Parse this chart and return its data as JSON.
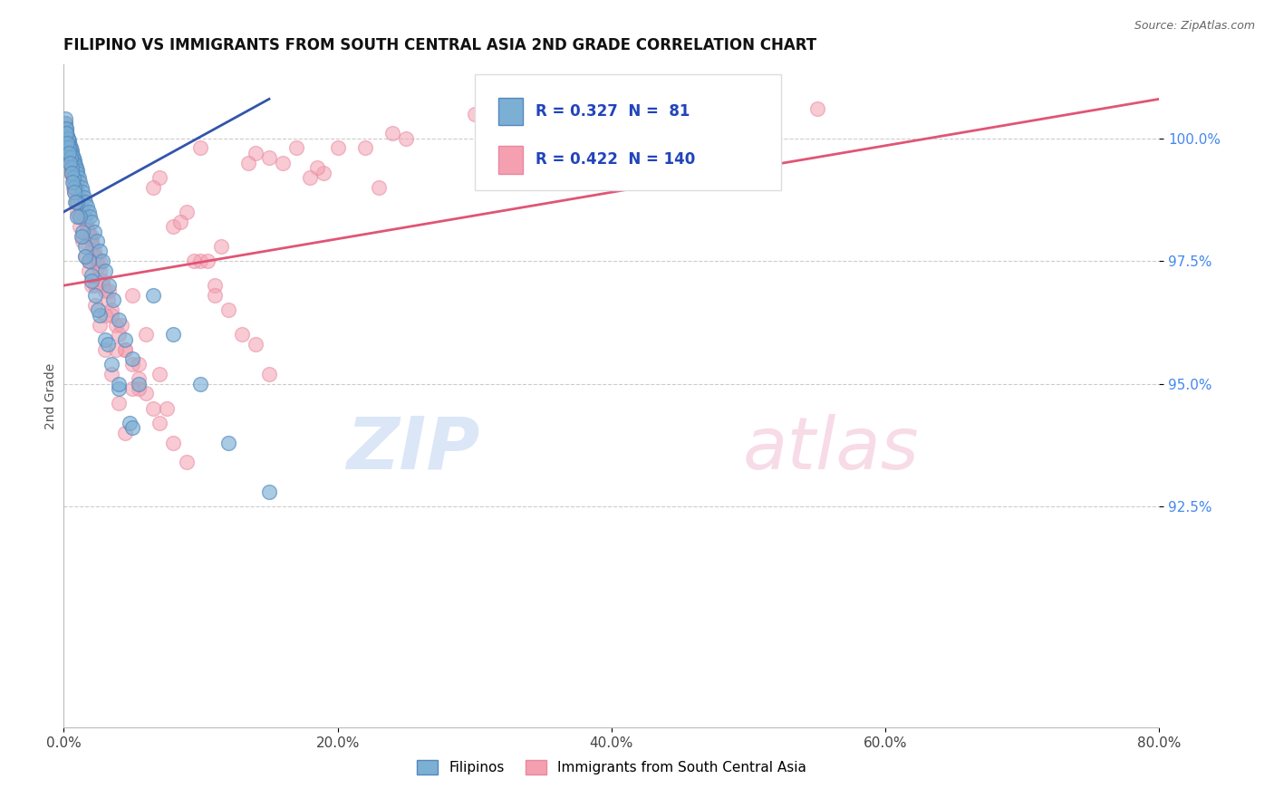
{
  "title": "FILIPINO VS IMMIGRANTS FROM SOUTH CENTRAL ASIA 2ND GRADE CORRELATION CHART",
  "source": "Source: ZipAtlas.com",
  "xlabel_values": [
    0.0,
    20.0,
    40.0,
    60.0,
    80.0
  ],
  "ylabel": "2nd Grade",
  "ylabel_values": [
    92.5,
    95.0,
    97.5,
    100.0
  ],
  "xlim": [
    0.0,
    80.0
  ],
  "ylim": [
    88.0,
    101.5
  ],
  "blue_R": 0.327,
  "blue_N": 81,
  "pink_R": 0.422,
  "pink_N": 140,
  "blue_color": "#7BAFD4",
  "pink_color": "#F4A0B0",
  "blue_line_color": "#3355AA",
  "pink_line_color": "#E05575",
  "legend_filipinos": "Filipinos",
  "legend_immigrants": "Immigrants from South Central Asia",
  "blue_scatter_x": [
    0.1,
    0.15,
    0.2,
    0.25,
    0.3,
    0.35,
    0.4,
    0.45,
    0.5,
    0.55,
    0.6,
    0.65,
    0.7,
    0.75,
    0.8,
    0.85,
    0.9,
    0.95,
    1.0,
    1.1,
    1.2,
    1.3,
    1.4,
    1.5,
    1.6,
    1.7,
    1.8,
    1.9,
    2.0,
    2.2,
    2.4,
    2.6,
    2.8,
    3.0,
    3.3,
    3.6,
    4.0,
    4.5,
    5.0,
    5.5,
    0.1,
    0.2,
    0.3,
    0.4,
    0.5,
    0.6,
    0.7,
    0.8,
    1.0,
    1.2,
    1.4,
    1.6,
    1.8,
    2.0,
    2.3,
    2.6,
    3.0,
    3.5,
    4.0,
    4.8,
    0.15,
    0.25,
    0.35,
    0.45,
    0.55,
    0.65,
    0.75,
    0.85,
    1.0,
    1.3,
    1.6,
    2.0,
    2.5,
    3.2,
    4.0,
    5.0,
    6.5,
    8.0,
    10.0,
    12.0,
    15.0
  ],
  "blue_scatter_y": [
    100.3,
    100.2,
    100.1,
    100.05,
    100.0,
    99.95,
    99.9,
    99.85,
    99.8,
    99.75,
    99.7,
    99.65,
    99.6,
    99.55,
    99.5,
    99.45,
    99.4,
    99.35,
    99.3,
    99.2,
    99.1,
    99.0,
    98.9,
    98.8,
    98.7,
    98.6,
    98.5,
    98.4,
    98.3,
    98.1,
    97.9,
    97.7,
    97.5,
    97.3,
    97.0,
    96.7,
    96.3,
    95.9,
    95.5,
    95.0,
    100.4,
    100.2,
    100.0,
    99.8,
    99.6,
    99.4,
    99.2,
    99.0,
    98.7,
    98.4,
    98.1,
    97.8,
    97.5,
    97.2,
    96.8,
    96.4,
    95.9,
    95.4,
    94.9,
    94.2,
    100.1,
    99.9,
    99.7,
    99.5,
    99.3,
    99.1,
    98.9,
    98.7,
    98.4,
    98.0,
    97.6,
    97.1,
    96.5,
    95.8,
    95.0,
    94.1,
    96.8,
    96.0,
    95.0,
    93.8,
    92.8
  ],
  "pink_scatter_x": [
    0.1,
    0.15,
    0.2,
    0.25,
    0.3,
    0.35,
    0.4,
    0.45,
    0.5,
    0.6,
    0.7,
    0.8,
    0.9,
    1.0,
    1.1,
    1.2,
    1.3,
    1.4,
    1.5,
    1.6,
    1.7,
    1.8,
    1.9,
    2.0,
    2.1,
    2.2,
    2.3,
    2.4,
    2.5,
    2.6,
    2.8,
    3.0,
    3.2,
    3.5,
    3.8,
    4.0,
    4.5,
    5.0,
    5.5,
    6.0,
    6.5,
    7.0,
    8.0,
    9.0,
    10.0,
    11.0,
    12.0,
    14.0,
    15.0,
    17.0,
    0.1,
    0.2,
    0.3,
    0.4,
    0.5,
    0.6,
    0.7,
    0.8,
    0.9,
    1.0,
    1.2,
    1.4,
    1.6,
    1.8,
    2.0,
    2.3,
    2.6,
    3.0,
    3.5,
    4.0,
    4.5,
    5.0,
    6.0,
    7.0,
    8.0,
    9.5,
    11.0,
    13.0,
    16.0,
    20.0,
    0.2,
    0.4,
    0.6,
    0.8,
    1.0,
    1.3,
    1.7,
    2.2,
    2.8,
    3.5,
    4.5,
    5.5,
    7.0,
    9.0,
    11.5,
    15.0,
    19.0,
    25.0,
    32.0,
    42.0,
    0.15,
    0.3,
    0.5,
    0.7,
    0.9,
    1.1,
    1.4,
    1.8,
    2.3,
    3.0,
    3.8,
    5.0,
    6.5,
    8.5,
    10.5,
    14.0,
    18.5,
    24.0,
    31.0,
    22.0,
    0.25,
    0.4,
    0.6,
    0.9,
    1.2,
    1.6,
    2.0,
    2.6,
    3.3,
    4.2,
    5.5,
    7.5,
    10.0,
    13.5,
    18.0,
    23.0,
    30.0,
    39.0,
    50.0,
    55.0
  ],
  "pink_scatter_y": [
    100.2,
    100.1,
    100.0,
    99.9,
    99.8,
    99.7,
    99.6,
    99.5,
    99.4,
    99.3,
    99.2,
    99.1,
    99.0,
    98.9,
    98.8,
    98.7,
    98.6,
    98.5,
    98.4,
    98.3,
    98.2,
    98.1,
    98.0,
    97.9,
    97.8,
    97.7,
    97.6,
    97.5,
    97.4,
    97.3,
    97.1,
    96.9,
    96.7,
    96.5,
    96.2,
    96.0,
    95.7,
    95.4,
    95.1,
    94.8,
    94.5,
    94.2,
    93.8,
    93.4,
    97.5,
    97.0,
    96.5,
    95.8,
    95.2,
    99.8,
    100.3,
    100.1,
    99.9,
    99.7,
    99.5,
    99.3,
    99.1,
    98.9,
    98.7,
    98.5,
    98.2,
    97.9,
    97.6,
    97.3,
    97.0,
    96.6,
    96.2,
    95.7,
    95.2,
    94.6,
    94.0,
    96.8,
    96.0,
    95.2,
    98.2,
    97.5,
    96.8,
    96.0,
    99.5,
    99.8,
    100.1,
    99.8,
    99.5,
    99.2,
    98.9,
    98.5,
    98.1,
    97.6,
    97.0,
    96.4,
    95.7,
    94.9,
    99.2,
    98.5,
    97.8,
    99.6,
    99.3,
    100.0,
    100.2,
    100.4,
    99.9,
    99.6,
    99.3,
    99.0,
    98.7,
    98.4,
    98.0,
    97.5,
    97.0,
    96.4,
    95.7,
    94.9,
    99.0,
    98.3,
    97.5,
    99.7,
    99.4,
    100.1,
    100.3,
    99.8,
    100.0,
    99.7,
    99.4,
    99.1,
    98.8,
    98.4,
    98.0,
    97.5,
    96.9,
    96.2,
    95.4,
    94.5,
    99.8,
    99.5,
    99.2,
    99.0,
    100.5,
    100.2,
    100.8,
    100.6
  ],
  "blue_trend_x0": 0.0,
  "blue_trend_x1": 15.0,
  "blue_trend_y0": 98.5,
  "blue_trend_y1": 100.8,
  "pink_trend_x0": 0.0,
  "pink_trend_x1": 80.0,
  "pink_trend_y0": 97.0,
  "pink_trend_y1": 100.8
}
